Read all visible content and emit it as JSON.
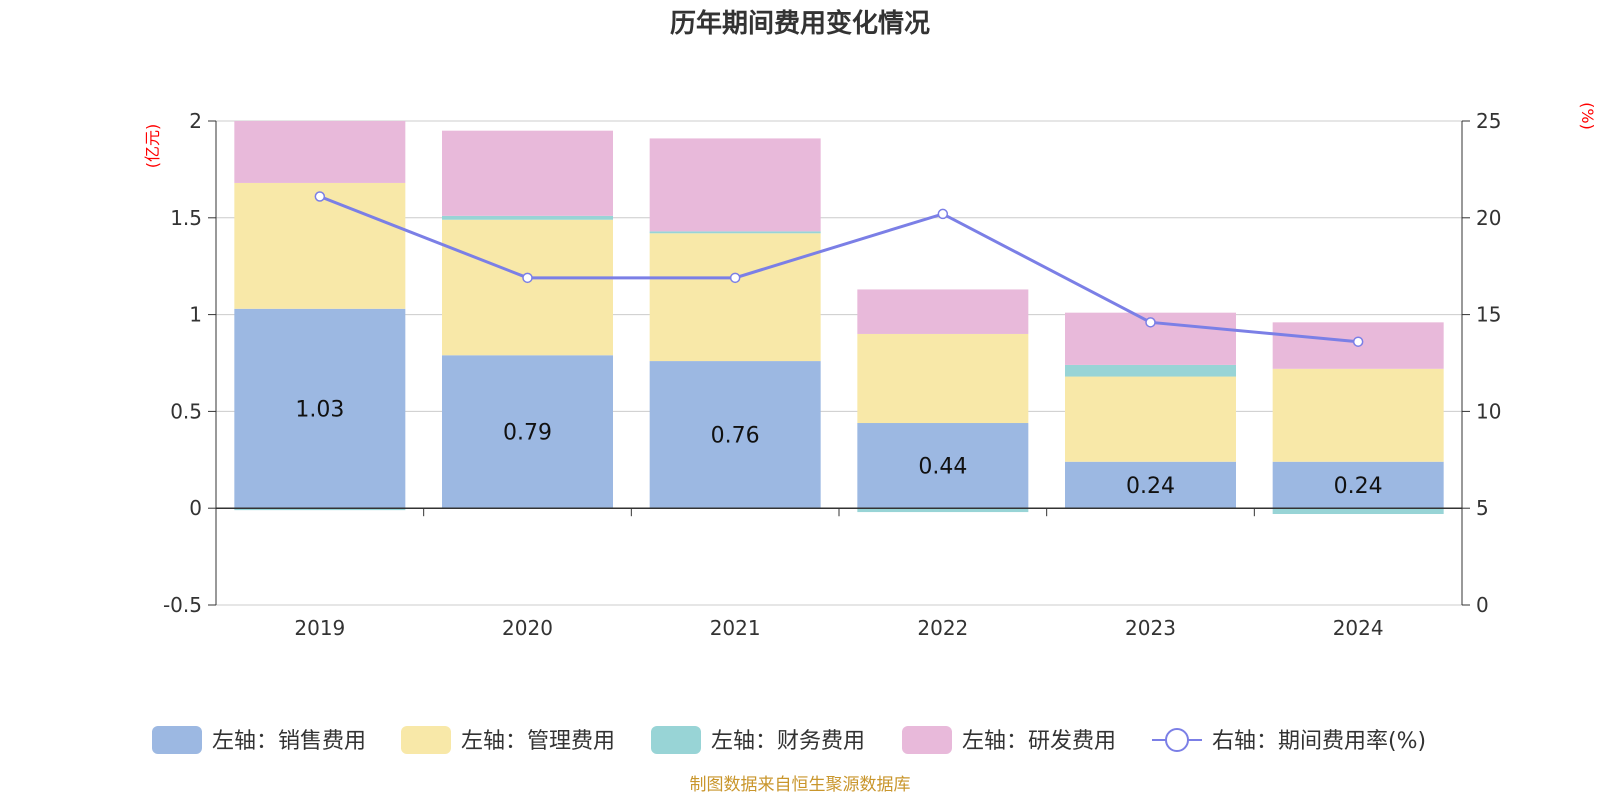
{
  "chart_data": {
    "type": "bar",
    "title": "历年期间费用变化情况",
    "categories": [
      "2019",
      "2020",
      "2021",
      "2022",
      "2023",
      "2024"
    ],
    "left_axis": {
      "unit": "(亿元)",
      "ylim": [
        -0.5,
        2
      ],
      "ticks": [
        "-0.5",
        "0",
        "0.5",
        "1",
        "1.5",
        "2"
      ]
    },
    "right_axis": {
      "unit": "(%)",
      "ylim": [
        0,
        25
      ],
      "ticks": [
        "0",
        "5",
        "10",
        "15",
        "20",
        "25"
      ]
    },
    "series": [
      {
        "name": "左轴：销售费用",
        "axis": "left",
        "type": "bar",
        "stack": "total",
        "color": "#9cb8e2",
        "values": [
          1.03,
          0.79,
          0.76,
          0.44,
          0.24,
          0.24
        ],
        "labels": [
          "1.03",
          "0.79",
          "0.76",
          "0.44",
          "0.24",
          "0.24"
        ]
      },
      {
        "name": "左轴：管理费用",
        "axis": "left",
        "type": "bar",
        "stack": "total",
        "color": "#f8e8a8",
        "values": [
          0.65,
          0.7,
          0.66,
          0.46,
          0.44,
          0.48
        ]
      },
      {
        "name": "左轴：财务费用",
        "axis": "left",
        "type": "bar",
        "stack": "total",
        "color": "#98d4d6",
        "values": [
          -0.01,
          0.02,
          0.01,
          -0.02,
          0.06,
          -0.03
        ]
      },
      {
        "name": "左轴：研发费用",
        "axis": "left",
        "type": "bar",
        "stack": "total",
        "color": "#e8b9da",
        "values": [
          0.32,
          0.44,
          0.48,
          0.23,
          0.27,
          0.24
        ]
      },
      {
        "name": "右轴：期间费用率(%)",
        "axis": "right",
        "type": "line",
        "color": "#7b7fe6",
        "values": [
          21.1,
          16.9,
          16.9,
          20.2,
          14.6,
          13.6
        ]
      }
    ],
    "grid": true,
    "legend_position": "bottom"
  },
  "source_note": "制图数据来自恒生聚源数据库"
}
